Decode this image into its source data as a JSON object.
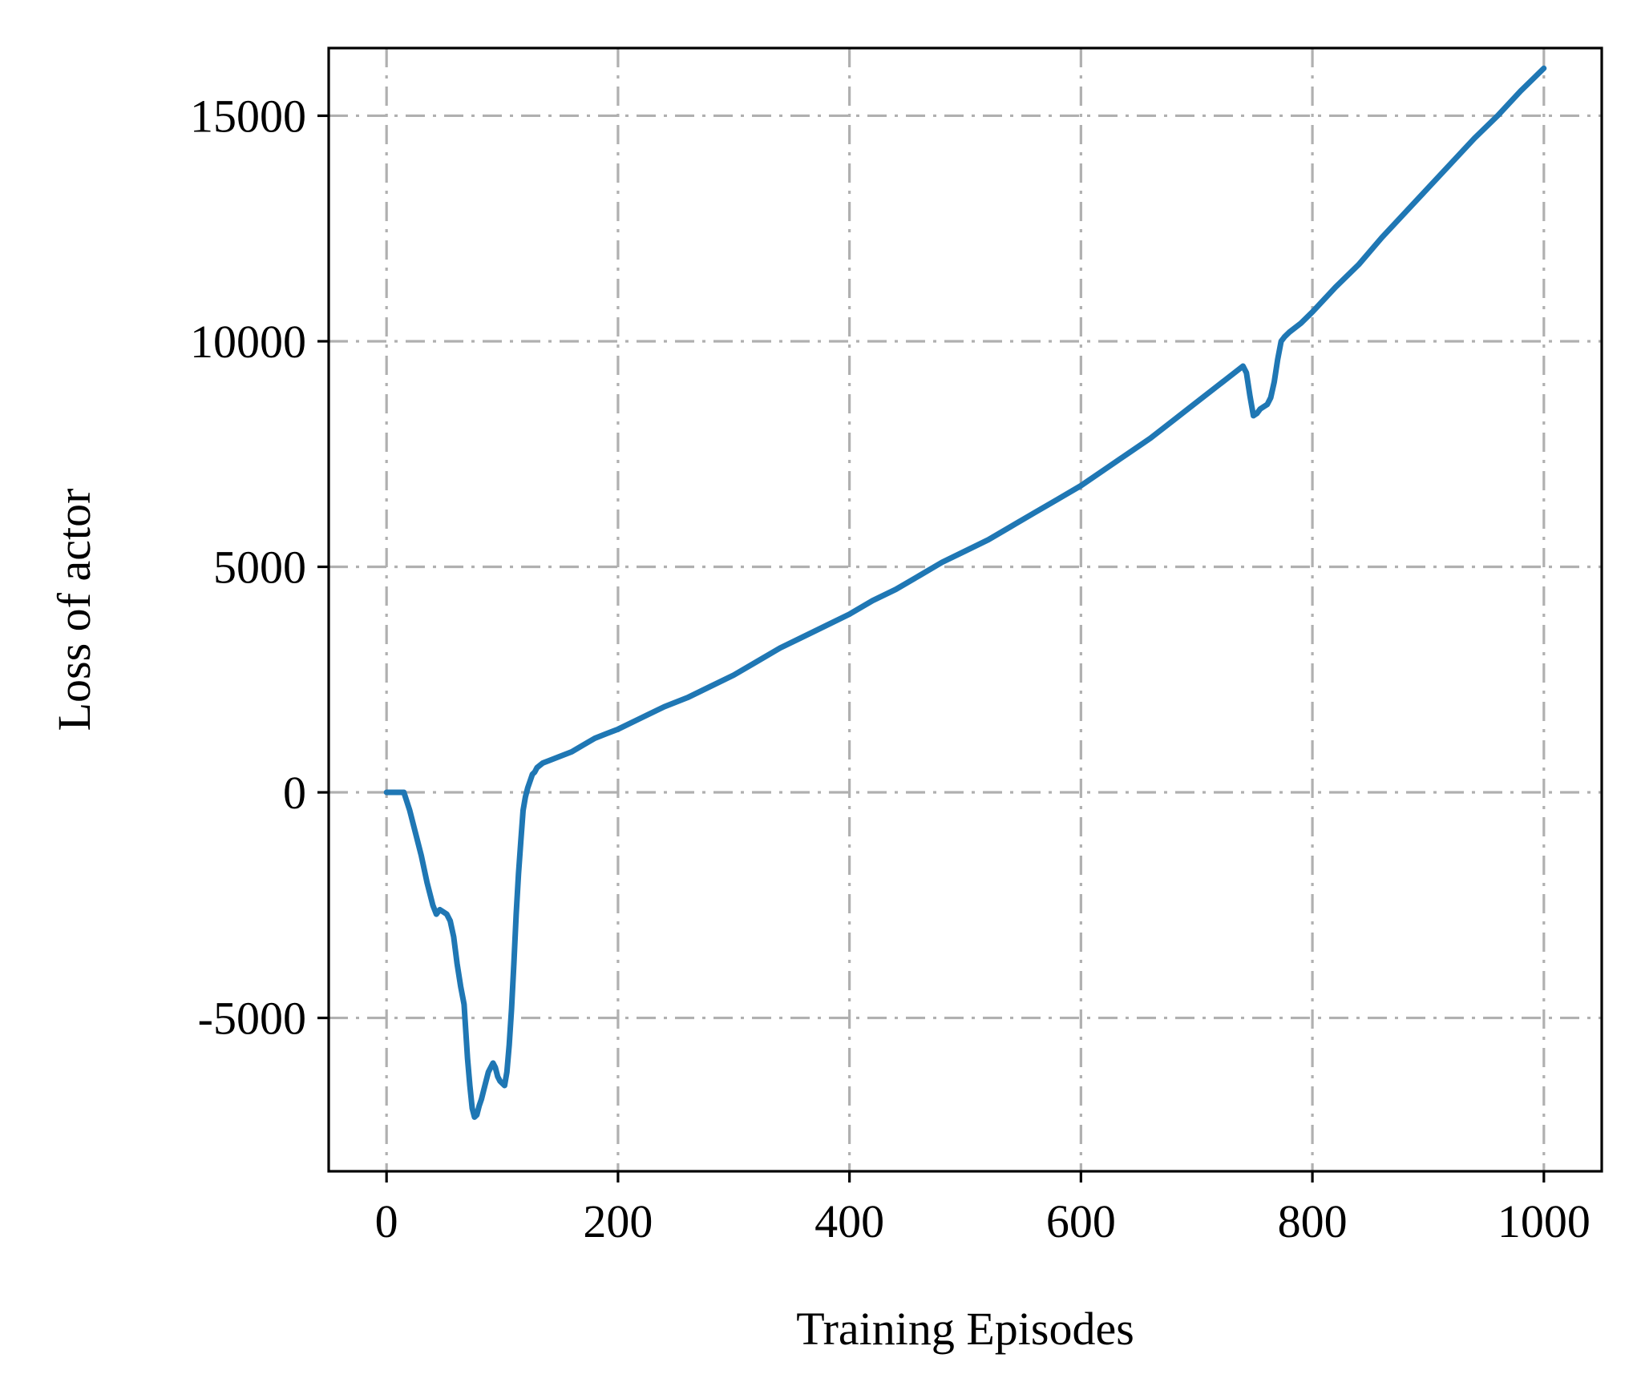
{
  "chart_data": {
    "type": "line",
    "title": "",
    "xlabel": "Training Episodes",
    "ylabel": "Loss of actor",
    "xlim": [
      -50,
      1050
    ],
    "ylim": [
      -8400,
      16500
    ],
    "xticks": [
      0,
      200,
      400,
      600,
      800,
      1000
    ],
    "yticks": [
      -5000,
      0,
      5000,
      10000,
      15000
    ],
    "xtick_labels": [
      "0",
      "200",
      "400",
      "600",
      "800",
      "1000"
    ],
    "ytick_labels": [
      "-5000",
      "0",
      "5000",
      "10000",
      "15000"
    ],
    "grid": true,
    "legend": "none",
    "series": [
      {
        "color": "#1f77b4",
        "x": [
          0,
          5,
          10,
          15,
          20,
          25,
          30,
          35,
          40,
          43,
          46,
          49,
          52,
          55,
          58,
          61,
          64,
          67,
          70,
          72,
          74,
          76,
          78,
          80,
          82,
          84,
          86,
          88,
          90,
          92,
          94,
          96,
          98,
          100,
          102,
          104,
          106,
          108,
          110,
          112,
          114,
          116,
          118,
          120,
          122,
          124,
          126,
          128,
          130,
          135,
          140,
          150,
          160,
          170,
          180,
          190,
          200,
          220,
          240,
          260,
          280,
          300,
          320,
          340,
          360,
          380,
          400,
          420,
          440,
          460,
          480,
          500,
          520,
          540,
          560,
          580,
          600,
          620,
          640,
          660,
          680,
          700,
          720,
          740,
          743,
          746,
          749,
          752,
          755,
          758,
          761,
          764,
          767,
          770,
          773,
          776,
          780,
          790,
          800,
          820,
          840,
          860,
          880,
          900,
          920,
          940,
          960,
          980,
          1000
        ],
        "y": [
          0,
          0,
          0,
          0,
          -400,
          -900,
          -1400,
          -2000,
          -2500,
          -2700,
          -2600,
          -2650,
          -2700,
          -2850,
          -3200,
          -3800,
          -4300,
          -4700,
          -5900,
          -6500,
          -7000,
          -7200,
          -7150,
          -6950,
          -6800,
          -6600,
          -6400,
          -6200,
          -6100,
          -6000,
          -6100,
          -6300,
          -6400,
          -6450,
          -6500,
          -6200,
          -5600,
          -4800,
          -3800,
          -2700,
          -1800,
          -1100,
          -400,
          -100,
          100,
          250,
          400,
          450,
          550,
          650,
          700,
          800,
          900,
          1050,
          1200,
          1300,
          1400,
          1650,
          1900,
          2100,
          2350,
          2600,
          2900,
          3200,
          3450,
          3700,
          3950,
          4250,
          4500,
          4800,
          5100,
          5350,
          5600,
          5900,
          6200,
          6500,
          6800,
          7150,
          7500,
          7850,
          8250,
          8650,
          9050,
          9450,
          9300,
          8800,
          8350,
          8400,
          8500,
          8550,
          8600,
          8750,
          9100,
          9600,
          10000,
          10100,
          10200,
          10400,
          10650,
          11200,
          11700,
          12300,
          12850,
          13400,
          13950,
          14500,
          15000,
          15550,
          16050
        ]
      }
    ]
  }
}
